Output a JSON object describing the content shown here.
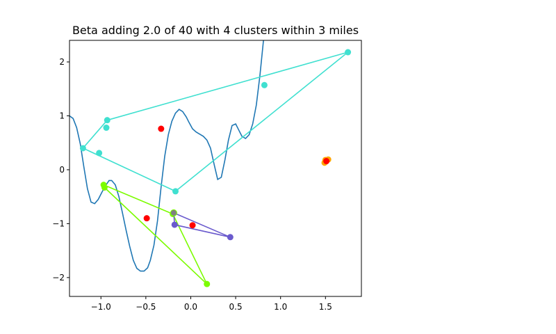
{
  "chart_data": {
    "type": "scatter",
    "title": "Beta adding 2.0 of 40 with 4 clusters within 3 miles",
    "xlabel": "",
    "ylabel": "",
    "xlim": [
      -1.35,
      1.9
    ],
    "ylim": [
      -2.35,
      2.4
    ],
    "xticks": [
      -1.0,
      -0.5,
      0.0,
      0.5,
      1.0,
      1.5
    ],
    "xtick_labels": [
      "−1.0",
      "−0.5",
      "0.0",
      "0.5",
      "1.0",
      "1.5"
    ],
    "yticks": [
      -2,
      -1,
      0,
      1,
      2
    ],
    "ytick_labels": [
      "−2",
      "−1",
      "0",
      "1",
      "2"
    ],
    "grid": false,
    "colors": {
      "curve": "#1f77b4",
      "cyan": "#40e0d0",
      "lime": "#7cfc00",
      "purple": "#6a5acd",
      "orange": "#ffa500",
      "red": "#ff0000",
      "gray": "#808080"
    },
    "curve": {
      "x": [
        -1.35,
        -1.31,
        -1.27,
        -1.23,
        -1.19,
        -1.15,
        -1.11,
        -1.07,
        -1.03,
        -0.99,
        -0.95,
        -0.91,
        -0.88,
        -0.84,
        -0.8,
        -0.76,
        -0.72,
        -0.68,
        -0.64,
        -0.6,
        -0.56,
        -0.52,
        -0.48,
        -0.45,
        -0.41,
        -0.37,
        -0.33,
        -0.29,
        -0.25,
        -0.21,
        -0.17,
        -0.13,
        -0.09,
        -0.05,
        -0.02,
        0.02,
        0.06,
        0.1,
        0.14,
        0.18,
        0.22,
        0.26,
        0.3,
        0.34,
        0.38,
        0.42,
        0.46,
        0.5,
        0.53,
        0.57,
        0.61,
        0.65,
        0.69,
        0.73,
        0.77,
        0.81,
        0.85,
        0.89,
        0.93,
        0.96,
        1.0,
        1.04,
        1.08,
        1.12,
        1.16
      ],
      "y": [
        1.0,
        0.95,
        0.78,
        0.48,
        0.05,
        -0.35,
        -0.6,
        -0.63,
        -0.55,
        -0.42,
        -0.3,
        -0.2,
        -0.2,
        -0.28,
        -0.5,
        -0.8,
        -1.12,
        -1.42,
        -1.68,
        -1.83,
        -1.88,
        -1.88,
        -1.82,
        -1.68,
        -1.4,
        -0.95,
        -0.32,
        0.25,
        0.65,
        0.9,
        1.05,
        1.12,
        1.08,
        0.98,
        0.88,
        0.76,
        0.7,
        0.66,
        0.62,
        0.55,
        0.4,
        0.1,
        -0.18,
        -0.14,
        0.18,
        0.55,
        0.82,
        0.85,
        0.75,
        0.62,
        0.58,
        0.65,
        0.85,
        1.2,
        1.75,
        2.4,
        2.6,
        2.6,
        2.6,
        2.6,
        2.6,
        2.6,
        2.6,
        2.6,
        2.6
      ]
    },
    "clusters": [
      {
        "color": "#40e0d0",
        "hull": [
          [
            -0.93,
            0.92
          ],
          [
            1.75,
            2.18
          ],
          [
            -0.17,
            -0.4
          ],
          [
            -1.2,
            0.4
          ],
          [
            -0.93,
            0.92
          ]
        ],
        "points": [
          [
            1.75,
            2.18
          ],
          [
            0.82,
            1.57
          ],
          [
            -0.93,
            0.92
          ],
          [
            -0.94,
            0.78
          ],
          [
            -1.2,
            0.4
          ],
          [
            -1.02,
            0.31
          ],
          [
            -0.17,
            -0.4
          ]
        ]
      },
      {
        "color": "#7cfc00",
        "hull": [
          [
            -0.97,
            -0.28
          ],
          [
            -0.2,
            -0.82
          ],
          [
            0.18,
            -2.12
          ],
          [
            -0.96,
            -0.33
          ],
          [
            -0.97,
            -0.28
          ]
        ],
        "points": [
          [
            -0.97,
            -0.28
          ],
          [
            -0.96,
            -0.33
          ],
          [
            -0.2,
            -0.82
          ],
          [
            0.18,
            -2.12
          ]
        ]
      },
      {
        "color": "#6a5acd",
        "hull": [
          [
            -0.19,
            -0.8
          ],
          [
            0.44,
            -1.25
          ],
          [
            -0.18,
            -1.02
          ],
          [
            -0.19,
            -0.8
          ]
        ],
        "points": [
          [
            -0.19,
            -0.8
          ],
          [
            0.44,
            -1.25
          ],
          [
            -0.18,
            -1.02
          ]
        ]
      },
      {
        "color": "#ffa500",
        "hull": [],
        "points": [
          [
            1.49,
            0.13
          ],
          [
            1.51,
            0.16
          ],
          [
            1.53,
            0.19
          ],
          [
            1.5,
            0.18
          ]
        ]
      }
    ],
    "centers": {
      "color": "#ff0000",
      "points": [
        [
          -0.33,
          0.76
        ],
        [
          -0.49,
          -0.9
        ],
        [
          0.02,
          -1.03
        ],
        [
          1.51,
          0.16
        ]
      ]
    }
  }
}
